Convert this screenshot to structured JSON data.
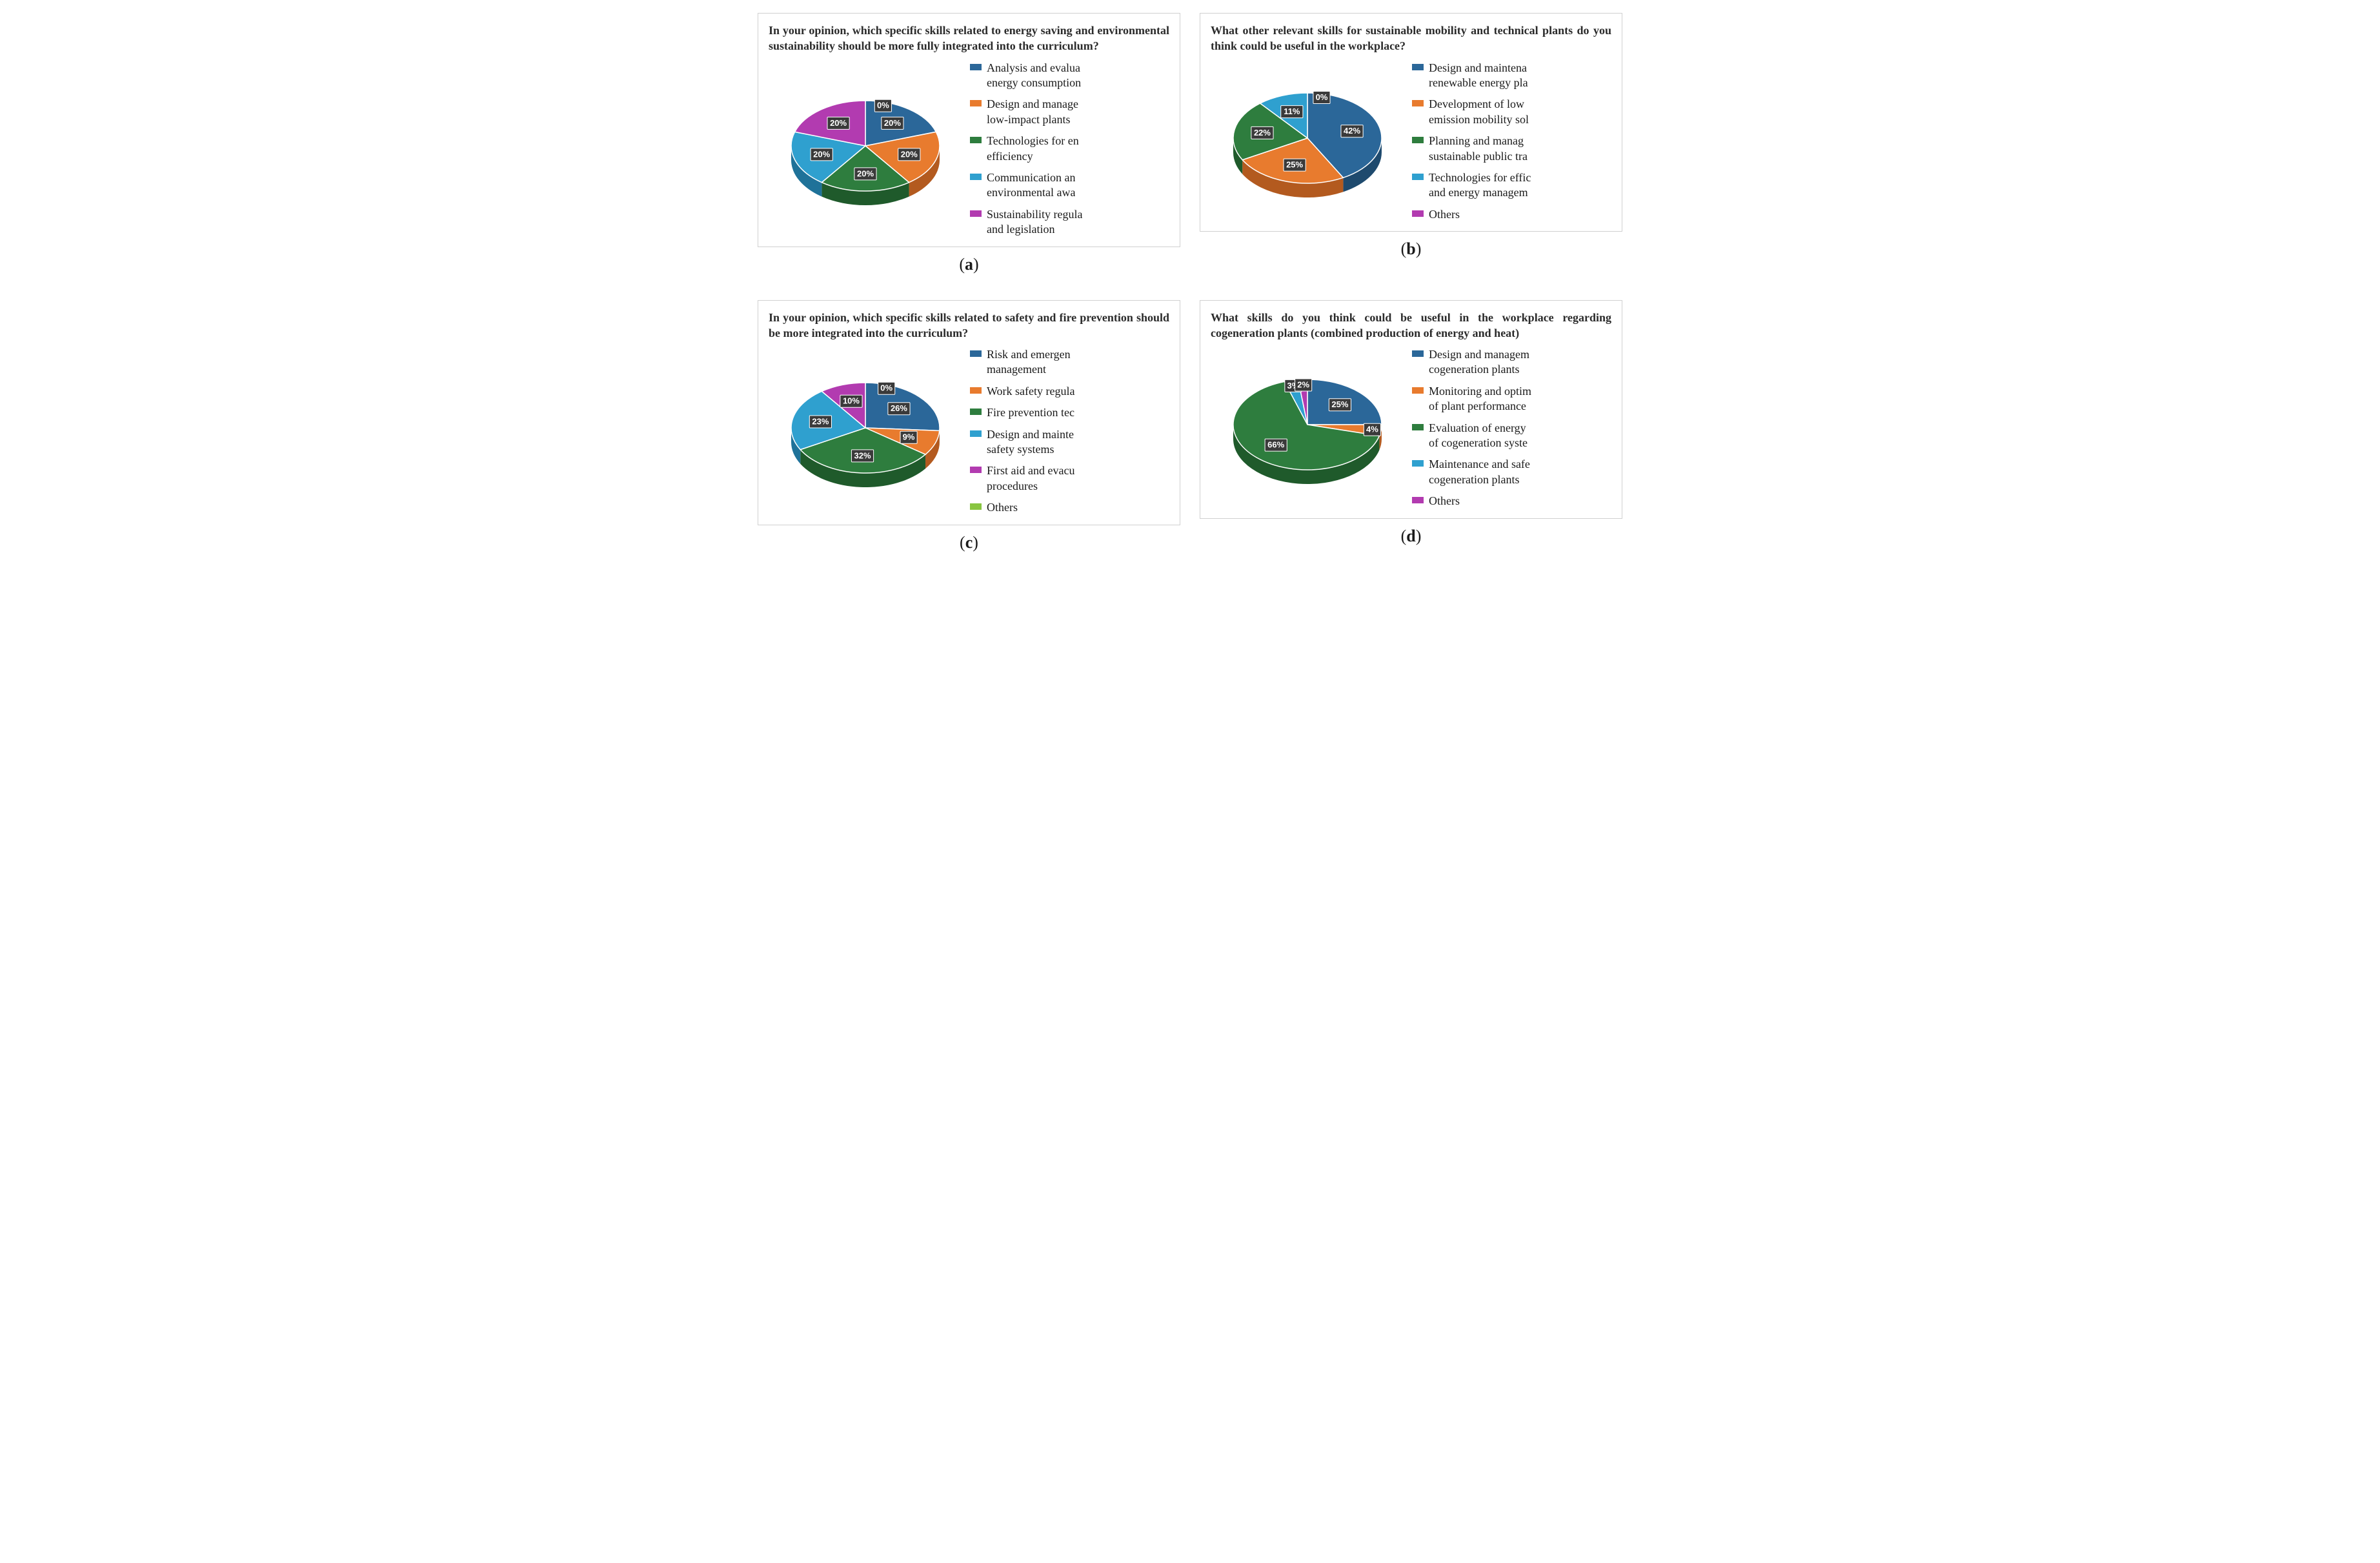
{
  "global": {
    "title_fontsize": 18,
    "legend_fontsize": 18,
    "label_fontsize": 13,
    "sublabel_fontsize": 26,
    "label_bg": "#3a3a3a",
    "label_text": "#ffffff",
    "border_color": "#d0d0d0"
  },
  "palette": {
    "blue": "#2b6799",
    "orange": "#e87b2e",
    "green": "#2e7d3e",
    "cyan": "#2fa0cf",
    "magenta": "#b23bb0",
    "lime": "#88c540"
  },
  "palette_dark": {
    "blue": "#1e4a6e",
    "orange": "#b35a1f",
    "green": "#1f5a2b",
    "cyan": "#1f7299",
    "magenta": "#7d2a7c",
    "lime": "#5e8a2c"
  },
  "charts": [
    {
      "key": "a",
      "title": "In your opinion, which specific skills related to energy saving and environmental sustainability should be more fully integrated into the curriculum?",
      "sublabel": "(a)",
      "type": "pie3d",
      "slices": [
        {
          "value": 20,
          "label": "20%",
          "color": "blue",
          "legend": [
            "Analysis and evalua",
            "energy consumption"
          ]
        },
        {
          "value": 20,
          "label": "20%",
          "color": "orange",
          "legend": [
            "Design and manage",
            "low-impact plants"
          ]
        },
        {
          "value": 20,
          "label": "20%",
          "color": "green",
          "legend": [
            "Technologies for en",
            "efficiency"
          ]
        },
        {
          "value": 20,
          "label": "20%",
          "color": "cyan",
          "legend": [
            "Communication an",
            "environmental awa"
          ]
        },
        {
          "value": 20,
          "label": "20%",
          "color": "magenta",
          "legend": [
            "Sustainability regula",
            "and legislation"
          ]
        },
        {
          "value": 0,
          "label": "0%",
          "color": "lime",
          "legend": null
        }
      ],
      "zero_label_angle": -75
    },
    {
      "key": "b",
      "title": "What other relevant skills for sustainable mobility and technical plants do you think could be useful in the workplace?",
      "sublabel": "(b)",
      "type": "pie3d",
      "slices": [
        {
          "value": 42,
          "label": "42%",
          "color": "blue",
          "legend": [
            "Design and maintena",
            "renewable energy pla"
          ]
        },
        {
          "value": 25,
          "label": "25%",
          "color": "orange",
          "legend": [
            "Development of low",
            "emission mobility sol"
          ]
        },
        {
          "value": 22,
          "label": "22%",
          "color": "green",
          "legend": [
            "Planning and manag",
            "sustainable public tra"
          ]
        },
        {
          "value": 11,
          "label": "11%",
          "color": "cyan",
          "legend": [
            "Technologies for effic",
            "and energy managem"
          ]
        },
        {
          "value": 0,
          "label": "0%",
          "color": "magenta",
          "legend": [
            "Others"
          ]
        }
      ],
      "zero_label_angle": -78
    },
    {
      "key": "c",
      "title": "In your opinion, which specific skills related to safety and fire prevention should be more integrated into the curriculum?",
      "sublabel": "(c)",
      "type": "pie3d",
      "slices": [
        {
          "value": 26,
          "label": "26%",
          "color": "blue",
          "legend": [
            "Risk and emergen",
            "management"
          ]
        },
        {
          "value": 9,
          "label": "9%",
          "color": "orange",
          "legend": [
            "Work safety regula"
          ]
        },
        {
          "value": 32,
          "label": "32%",
          "color": "green",
          "legend": [
            "Fire prevention tec"
          ]
        },
        {
          "value": 23,
          "label": "23%",
          "color": "cyan",
          "legend": [
            "Design and mainte",
            "safety systems"
          ]
        },
        {
          "value": 10,
          "label": "10%",
          "color": "magenta",
          "legend": [
            "First aid and evacu",
            "procedures"
          ]
        },
        {
          "value": 0,
          "label": "0%",
          "color": "lime",
          "legend": [
            "Others"
          ]
        }
      ],
      "zero_label_angle": -72
    },
    {
      "key": "d",
      "title": "What skills do you think could be useful in the workplace regarding cogeneration plants (combined production of energy and heat)",
      "sublabel": "(d)",
      "type": "pie3d",
      "slices": [
        {
          "value": 25,
          "label": "25%",
          "color": "blue",
          "legend": [
            "Design and managem",
            "cogeneration plants"
          ]
        },
        {
          "value": 4,
          "label": "4%",
          "color": "orange",
          "legend": [
            "Monitoring and optim",
            "of plant performance"
          ]
        },
        {
          "value": 66,
          "label": "66%",
          "color": "green",
          "legend": [
            "Evaluation of energy",
            "of cogeneration syste"
          ]
        },
        {
          "value": 3,
          "label": "3%",
          "color": "cyan",
          "legend": [
            "Maintenance and safe",
            "cogeneration plants"
          ]
        },
        {
          "value": 2,
          "label": "2%",
          "color": "magenta",
          "legend": [
            "Others"
          ]
        }
      ],
      "zero_label_angle": null
    }
  ]
}
